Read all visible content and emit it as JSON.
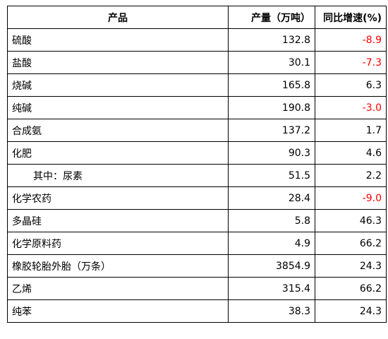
{
  "header": {
    "product": "产品",
    "output": "产量（万吨）",
    "growth": "同比增速(%)"
  },
  "colors": {
    "negative": "#ff0000",
    "text": "#000000",
    "border": "#000000"
  },
  "rows": [
    {
      "name": "硫酸",
      "output": "132.8",
      "growth": "-8.9"
    },
    {
      "name": "盐酸",
      "output": "30.1",
      "growth": "-7.3"
    },
    {
      "name": "烧碱",
      "output": "165.8",
      "growth": "6.3"
    },
    {
      "name": "纯碱",
      "output": "190.8",
      "growth": "-3.0"
    },
    {
      "name": "合成氨",
      "output": "137.2",
      "growth": "1.7"
    },
    {
      "name": "化肥",
      "output": "90.3",
      "growth": "4.6"
    },
    {
      "name": "其中：尿素",
      "output": "51.5",
      "growth": "2.2"
    },
    {
      "name": "化学农药",
      "output": "28.4",
      "growth": "-9.0"
    },
    {
      "name": "多晶硅",
      "output": "5.8",
      "growth": "46.3"
    },
    {
      "name": "化学原料药",
      "output": "4.9",
      "growth": "66.2"
    },
    {
      "name": "橡胶轮胎外胎（万条）",
      "output": "3854.9",
      "growth": "24.3"
    },
    {
      "name": "乙烯",
      "output": "315.4",
      "growth": "66.2"
    },
    {
      "name": "纯苯",
      "output": "38.3",
      "growth": "24.3"
    }
  ]
}
